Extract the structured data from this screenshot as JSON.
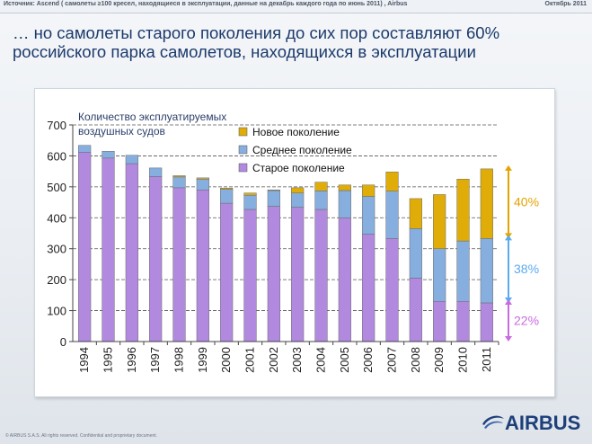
{
  "header": {
    "source": "Источник:  Ascend ( самолеты ≥100  кресел, находящиеся в эксплуатации, данные на декабрь каждого года  по июнь 2011) , Airbus",
    "date": "Октябрь 2011"
  },
  "title": {
    "line1": "… но самолеты старого поколения до сих пор составляют 60%",
    "line2": "российского парка самолетов, находящихся в эксплуатации"
  },
  "footer": {
    "text": "© AIRBUS S.A.S. All rights reserved. Confidential and proprietary document."
  },
  "logo": {
    "text": "AIRBUS",
    "icon": "airbus-swirl-icon"
  },
  "chart_data": {
    "type": "bar",
    "stacked": true,
    "orientation": "vertical",
    "ylabel": "Количество эксплуатируемых воздушных судов",
    "ylim": [
      0,
      700
    ],
    "yticks": [
      "0",
      "100",
      "200",
      "300",
      "400",
      "500",
      "600",
      "700"
    ],
    "grid": true,
    "legend_position": "top-center",
    "categories": [
      "1994",
      "1995",
      "1996",
      "1997",
      "1998",
      "1999",
      "2000",
      "2001",
      "2002",
      "2003",
      "2004",
      "2005",
      "2006",
      "2007",
      "2008",
      "2009",
      "2010",
      "2011"
    ],
    "series": [
      {
        "name": "Старое поколение",
        "color": "#b189df",
        "values": [
          612,
          593,
          575,
          533,
          497,
          490,
          447,
          427,
          437,
          434,
          427,
          400,
          347,
          333,
          205,
          130,
          130,
          125
        ]
      },
      {
        "name": "Среднее поколение",
        "color": "#86aede",
        "values": [
          22,
          22,
          27,
          28,
          35,
          35,
          45,
          46,
          51,
          46,
          60,
          88,
          122,
          153,
          160,
          170,
          195,
          208
        ]
      },
      {
        "name": "Новое поколение",
        "color": "#dfac08",
        "values": [
          0,
          0,
          0,
          0,
          4,
          4,
          4,
          7,
          2,
          17,
          28,
          18,
          37,
          62,
          97,
          175,
          200,
          225
        ]
      }
    ],
    "legend_order": [
      "Новое поколение",
      "Среднее поколение",
      "Старое поколение"
    ],
    "annotations": [
      {
        "label": "40%",
        "color": "#e4a300",
        "range": [
          333,
          558
        ]
      },
      {
        "label": "38%",
        "color": "#5aaaf0",
        "range": [
          125,
          333
        ]
      },
      {
        "label": "22%",
        "color": "#c96be0",
        "range": [
          0,
          125
        ]
      }
    ]
  }
}
